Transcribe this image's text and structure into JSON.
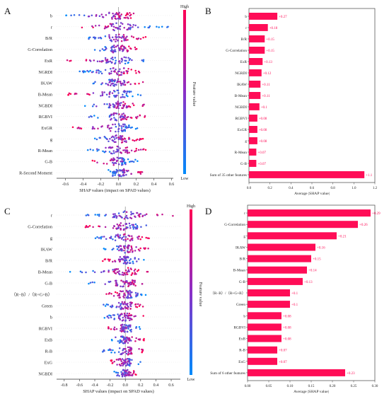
{
  "chart_data": [
    {
      "type": "scatter",
      "panel": "A",
      "xlabel": "SHAP values (impact on SPAD values)",
      "xlim": [
        -0.7,
        0.62
      ],
      "xticks": [
        -0.6,
        -0.4,
        -0.2,
        0.0,
        0.2,
        0.4,
        0.6
      ],
      "colorbar": {
        "label": "Feature value",
        "high": "High",
        "low": "Low"
      },
      "features": [
        "b",
        "r",
        "B/R",
        "G-Correlation",
        "ExR",
        "NGRDI",
        "IKAW",
        "B-Mean",
        "NGBDI",
        "RGBVI",
        "ExGR",
        "g",
        "R-Mean",
        "G-B",
        "R-Second Moment"
      ],
      "spread": [
        [
          -0.62,
          0.3
        ],
        [
          -0.5,
          0.57
        ],
        [
          -0.35,
          0.33
        ],
        [
          -0.3,
          0.25
        ],
        [
          -0.63,
          0.32
        ],
        [
          -0.45,
          0.25
        ],
        [
          -0.3,
          0.3
        ],
        [
          -0.58,
          0.28
        ],
        [
          -0.45,
          0.32
        ],
        [
          -0.35,
          0.3
        ],
        [
          -0.55,
          0.25
        ],
        [
          -0.3,
          0.3
        ],
        [
          -0.35,
          0.35
        ],
        [
          -0.3,
          0.22
        ],
        [
          -0.15,
          0.3
        ]
      ]
    },
    {
      "type": "bar",
      "panel": "B",
      "xlabel": "Average |SHAP value|",
      "xlim": [
        0,
        1.2
      ],
      "xticks": [
        0.0,
        0.2,
        0.4,
        0.6,
        0.8,
        1.0,
        1.2
      ],
      "categories": [
        "b",
        "r",
        "B/R",
        "G-Correlation",
        "ExR",
        "NGRDI",
        "IKAW",
        "B-Mean",
        "NGBDI",
        "RGBVI",
        "ExGR",
        "g",
        "R-Mean",
        "G-B",
        "Sum of 35 other features"
      ],
      "values": [
        0.27,
        0.18,
        0.15,
        0.15,
        0.13,
        0.12,
        0.11,
        0.11,
        0.1,
        0.08,
        0.08,
        0.08,
        0.07,
        0.07,
        1.1
      ],
      "labels": [
        "+0.27",
        "+0.18",
        "+0.15",
        "+0.15",
        "+0.13",
        "+0.12",
        "+0.11",
        "+0.11",
        "+0.1",
        "+0.08",
        "+0.08",
        "+0.08",
        "+0.07",
        "+0.07",
        "+1.1"
      ],
      "color": "#ff0d57"
    },
    {
      "type": "scatter",
      "panel": "C",
      "xlabel": "SHAP values (impact on SPAD values)",
      "xlim": [
        -0.9,
        0.72
      ],
      "xticks": [
        -0.8,
        -0.6,
        -0.4,
        -0.2,
        0.0,
        0.2,
        0.4,
        0.6
      ],
      "colorbar": {
        "label": "Feature value",
        "high": "High",
        "low": "Low"
      },
      "features": [
        "r",
        "G-Correlation",
        "g",
        "IKAW",
        "B/R",
        "B-Mean",
        "G-B",
        "（R−B）/（R+G+B）",
        "Green",
        "b",
        "RGBVI",
        "ExB",
        "R-B",
        "ExG",
        "NGBDI"
      ],
      "spread": [
        [
          -0.55,
          0.65
        ],
        [
          -0.55,
          0.5
        ],
        [
          -0.5,
          0.35
        ],
        [
          -0.3,
          0.3
        ],
        [
          -0.3,
          0.25
        ],
        [
          -0.8,
          0.35
        ],
        [
          -0.5,
          0.3
        ],
        [
          -0.25,
          0.3
        ],
        [
          -0.3,
          0.25
        ],
        [
          -0.3,
          0.25
        ],
        [
          -0.25,
          0.2
        ],
        [
          -0.2,
          0.25
        ],
        [
          -0.3,
          0.25
        ],
        [
          -0.2,
          0.2
        ],
        [
          -0.15,
          0.15
        ]
      ]
    },
    {
      "type": "bar",
      "panel": "D",
      "xlabel": "Average |SHAP value|",
      "xlim": [
        0,
        0.3
      ],
      "xticks": [
        0.0,
        0.05,
        0.1,
        0.15,
        0.2,
        0.25,
        0.3
      ],
      "categories": [
        "r",
        "G-Correlation",
        "g",
        "IKAW",
        "B/R",
        "B-Mean",
        "G-B",
        "（R−B）/（R+G+B）",
        "Green",
        "b",
        "RGBVI",
        "ExB",
        "R-B",
        "ExG",
        "Sum of 6 other features"
      ],
      "values": [
        0.29,
        0.26,
        0.21,
        0.16,
        0.15,
        0.14,
        0.13,
        0.1,
        0.1,
        0.08,
        0.08,
        0.08,
        0.07,
        0.07,
        0.23
      ],
      "labels": [
        "+0.29",
        "+0.26",
        "+0.21",
        "+0.16",
        "+0.15",
        "+0.14",
        "+0.13",
        "+0.1",
        "+0.1",
        "+0.08",
        "+0.08",
        "+0.08",
        "+0.07",
        "+0.07",
        "+0.23"
      ],
      "color": "#ff0d57"
    }
  ],
  "panel_letters": [
    "A",
    "B",
    "C",
    "D"
  ],
  "tick_labels": {
    "A": [
      "-0.6",
      "-0.4",
      "-0.2",
      "0.0",
      "0.2",
      "0.4",
      "0.6"
    ],
    "B": [
      "0.0",
      "0.2",
      "0.4",
      "0.6",
      "0.8",
      "1.0",
      "1.2"
    ],
    "C": [
      "-0.8",
      "-0.6",
      "-0.4",
      "-0.2",
      "0.0",
      "0.2",
      "0.4",
      "0.6"
    ],
    "D": [
      "0.00",
      "0.05",
      "0.10",
      "0.15",
      "0.20",
      "0.25",
      "0.30"
    ]
  },
  "colors": {
    "high": "#ff0052",
    "mid": "#8b2fc7",
    "low": "#008bfb",
    "bar": "#ff0d57",
    "axis": "#333333"
  }
}
